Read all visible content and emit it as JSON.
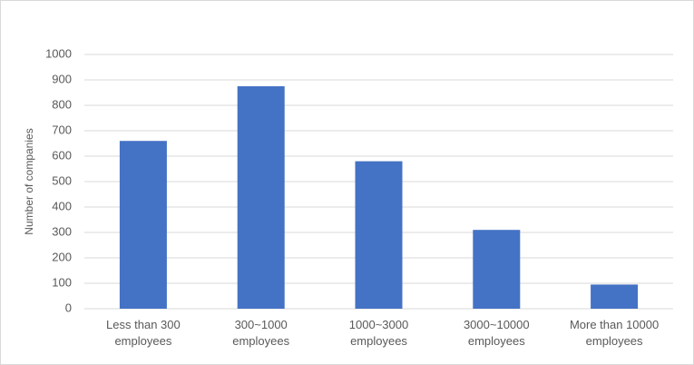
{
  "chart_data": {
    "type": "bar",
    "y_label": "Number of companies",
    "categories": [
      "Less than 300 employees",
      "300~1000 employees",
      "1000~3000 employees",
      "3000~10000 employees",
      "More than 10000 employees"
    ],
    "values": [
      660,
      875,
      580,
      310,
      95
    ],
    "color": "#4472c4",
    "ylim": [
      0,
      1000
    ],
    "yticks": [
      0,
      100,
      200,
      300,
      400,
      500,
      600,
      700,
      800,
      900,
      1000
    ],
    "grid": true
  }
}
